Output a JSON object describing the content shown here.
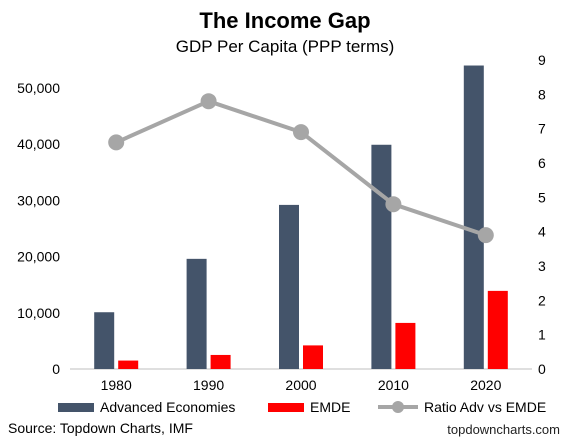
{
  "chart_data": {
    "type": "bar",
    "title": "The Income Gap",
    "subtitle": "GDP Per Capita (PPP terms)",
    "categories": [
      "1980",
      "1990",
      "2000",
      "2010",
      "2020"
    ],
    "series": [
      {
        "name": "Advanced Economies",
        "type": "bar",
        "axis": "left",
        "color": "#44546a",
        "values": [
          10100,
          19600,
          29200,
          39900,
          54000
        ]
      },
      {
        "name": "EMDE",
        "type": "bar",
        "axis": "left",
        "color": "#ff0000",
        "values": [
          1500,
          2500,
          4200,
          8200,
          13900
        ]
      },
      {
        "name": "Ratio Adv vs EMDE",
        "type": "line",
        "axis": "right",
        "color": "#a6a6a6",
        "values": [
          6.6,
          7.8,
          6.9,
          4.8,
          3.9
        ]
      }
    ],
    "y_left": {
      "min": 0,
      "max": 55000,
      "ticks": [
        0,
        10000,
        20000,
        30000,
        40000,
        50000
      ],
      "tick_labels": [
        "0",
        "10,000",
        "20,000",
        "30,000",
        "40,000",
        "50,000"
      ]
    },
    "y_right": {
      "min": 0,
      "max": 9,
      "ticks": [
        0,
        1,
        2,
        3,
        4,
        5,
        6,
        7,
        8,
        9
      ],
      "tick_labels": [
        "0",
        "1",
        "2",
        "3",
        "4",
        "5",
        "6",
        "7",
        "8",
        "9"
      ]
    },
    "grid": false,
    "legend_position": "bottom",
    "source": "Source: Topdown Charts, IMF",
    "website": "topdowncharts.com"
  }
}
